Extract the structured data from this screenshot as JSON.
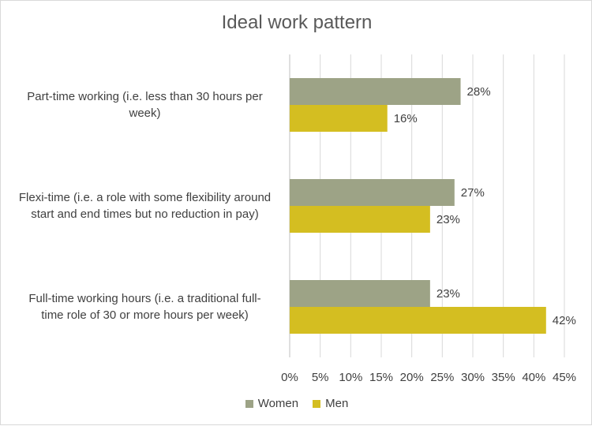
{
  "chart_data": {
    "type": "bar",
    "orientation": "horizontal",
    "title": "Ideal work pattern",
    "categories": [
      "Part-time working (i.e. less than 30 hours per week)",
      "Flexi-time (i.e. a role with some flexibility around start and end times but no reduction in pay)",
      "Full-time working hours (i.e. a traditional full-time role of 30 or more hours per week)"
    ],
    "category_lines": [
      [
        "Part-time working (i.e. less than 30 hours per",
        "week)"
      ],
      [
        "Flexi-time (i.e. a role with some flexibility around",
        "start and end times but no reduction in pay)"
      ],
      [
        "Full-time working hours (i.e. a traditional full-",
        "time role of 30 or more hours per week)"
      ]
    ],
    "series": [
      {
        "name": "Women",
        "color": "#9da386",
        "values": [
          28,
          27,
          23
        ],
        "labels": [
          "28%",
          "27%",
          "23%"
        ]
      },
      {
        "name": "Men",
        "color": "#d4be21",
        "values": [
          16,
          23,
          42
        ],
        "labels": [
          "16%",
          "23%",
          "42%"
        ]
      }
    ],
    "xlim": [
      0,
      45
    ],
    "x_ticks": [
      "0%",
      "5%",
      "10%",
      "15%",
      "20%",
      "25%",
      "30%",
      "35%",
      "40%",
      "45%"
    ],
    "grid": true,
    "legend_position": "bottom",
    "xlabel": "",
    "ylabel": ""
  }
}
